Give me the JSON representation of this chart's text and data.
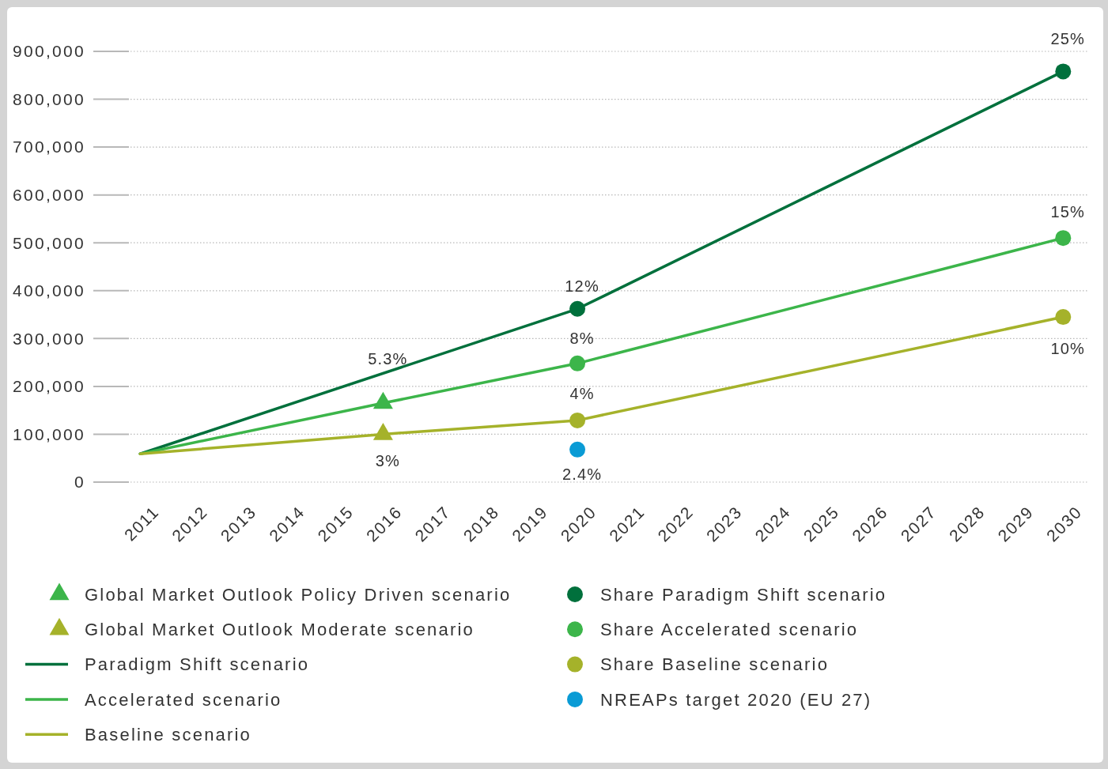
{
  "chart_data": {
    "type": "line",
    "xlim": [
      2010.8,
      2030.5
    ],
    "xticks": [
      2011,
      2012,
      2013,
      2014,
      2015,
      2016,
      2017,
      2018,
      2019,
      2020,
      2021,
      2022,
      2023,
      2024,
      2025,
      2026,
      2027,
      2028,
      2029,
      2030
    ],
    "ylim": [
      0,
      900000
    ],
    "yticks": [
      0,
      {
        "value": 100000,
        "label": "100,000"
      },
      {
        "value": 200000,
        "label": "200,000"
      },
      {
        "value": 300000,
        "label": "300,000"
      },
      {
        "value": 400000,
        "label": "400,000"
      },
      {
        "value": 500000,
        "label": "500,000"
      },
      {
        "value": 600000,
        "label": "600,000"
      },
      {
        "value": 700000,
        "label": "700,000"
      },
      {
        "value": 800000,
        "label": "800,000"
      },
      {
        "value": 900000,
        "label": "900,000"
      }
    ],
    "grid": "y",
    "legend": "bottom",
    "series": [
      {
        "name": "Global Market Outlook Policy Driven scenario",
        "type": "scatter",
        "marker": "triangle",
        "color": "#3cb54a",
        "x": [
          2016
        ],
        "values": [
          165000
        ]
      },
      {
        "name": "Global Market Outlook Moderate scenario",
        "type": "scatter",
        "marker": "triangle",
        "color": "#a5b22a",
        "x": [
          2016
        ],
        "values": [
          100000
        ]
      },
      {
        "name": "Paradigm Shift scenario",
        "color": "#00703c",
        "x": [
          2011,
          2020,
          2030
        ],
        "values": [
          59000,
          362000,
          858000
        ]
      },
      {
        "name": "Accelerated scenario",
        "color": "#3cb54a",
        "x": [
          2011,
          2016,
          2020,
          2030
        ],
        "values": [
          59000,
          165000,
          248000,
          510000
        ]
      },
      {
        "name": "Baseline scenario",
        "color": "#a5b22a",
        "x": [
          2011,
          2016,
          2020,
          2030
        ],
        "values": [
          59000,
          100000,
          129000,
          345000
        ]
      },
      {
        "name": "Share Paradigm Shift scenario",
        "type": "scatter",
        "marker": "circle",
        "color": "#00703c",
        "x": [
          2020,
          2030
        ],
        "values": [
          362000,
          858000
        ]
      },
      {
        "name": "Share Accelerated scenario",
        "type": "scatter",
        "marker": "circle",
        "color": "#3cb54a",
        "x": [
          2020,
          2030
        ],
        "values": [
          248000,
          510000
        ]
      },
      {
        "name": "Share Baseline scenario",
        "type": "scatter",
        "marker": "circle",
        "color": "#a5b22a",
        "x": [
          2020,
          2030
        ],
        "values": [
          129000,
          345000
        ]
      },
      {
        "name": "NREAPs target 2020 (EU 27)",
        "type": "scatter",
        "marker": "circle",
        "color": "#0a9bd5",
        "x": [
          2020
        ],
        "values": [
          68000
        ]
      }
    ],
    "annotations": [
      {
        "text": "5.3%",
        "x": 2016,
        "y": 165000
      },
      {
        "text": "3%",
        "x": 2016,
        "y": 100000
      },
      {
        "text": "12%",
        "x": 2020,
        "y": 362000
      },
      {
        "text": "8%",
        "x": 2020,
        "y": 248000
      },
      {
        "text": "4%",
        "x": 2020,
        "y": 129000
      },
      {
        "text": "2.4%",
        "x": 2020,
        "y": 68000
      },
      {
        "text": "25%",
        "x": 2030,
        "y": 858000
      },
      {
        "text": "15%",
        "x": 2030,
        "y": 510000
      },
      {
        "text": "10%",
        "x": 2030,
        "y": 345000
      }
    ]
  }
}
